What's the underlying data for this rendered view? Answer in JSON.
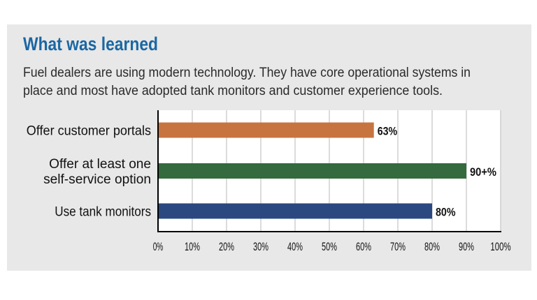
{
  "chart_data": {
    "type": "bar",
    "orientation": "horizontal",
    "title": "What was learned",
    "subtitle": [
      "Fuel dealers are using modern technology. They have core operational systems in",
      "place and most have adopted tank monitors and customer experience tools."
    ],
    "categories": [
      [
        "Offer customer portals"
      ],
      [
        "Offer at least one",
        "self-service option"
      ],
      [
        "Use tank monitors"
      ]
    ],
    "values": [
      63,
      90,
      80
    ],
    "data_labels": [
      "63%",
      "90+%",
      "80%"
    ],
    "colors": [
      "#c87441",
      "#346a3e",
      "#2b4880"
    ],
    "xlim": [
      0,
      100
    ],
    "xticks": [
      "0%",
      "10%",
      "20%",
      "30%",
      "40%",
      "50%",
      "60%",
      "70%",
      "80%",
      "90%",
      "100%"
    ],
    "grid": true,
    "xlabel": "",
    "ylabel": ""
  },
  "style": {
    "title_color": "#1b67a3",
    "panel_color": "#e8e8e8"
  }
}
